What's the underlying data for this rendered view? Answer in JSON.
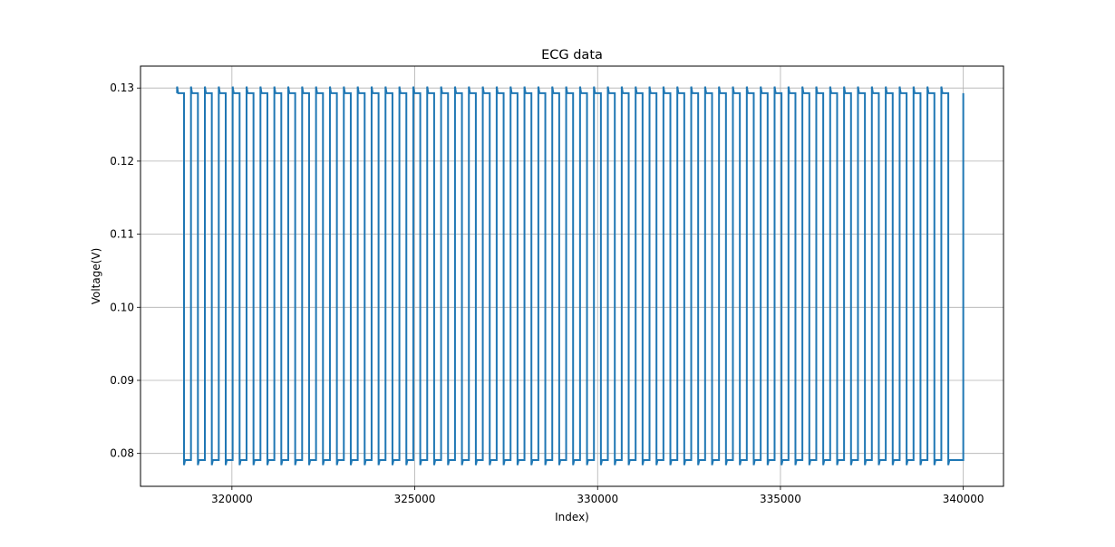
{
  "chart_data": {
    "type": "line",
    "title": "ECG data",
    "xlabel": "Index)",
    "ylabel": "Voltage(V)",
    "xlim": [
      317500,
      341100
    ],
    "ylim": [
      0.0755,
      0.133
    ],
    "xticks": [
      320000,
      325000,
      330000,
      335000,
      340000
    ],
    "yticks": [
      0.08,
      0.09,
      0.1,
      0.11,
      0.12,
      0.13
    ],
    "xtick_labels": [
      "320000",
      "325000",
      "330000",
      "335000",
      "340000"
    ],
    "ytick_labels": [
      "0.08",
      "0.09",
      "0.10",
      "0.11",
      "0.12",
      "0.13"
    ],
    "grid": true,
    "legend": "none",
    "series": [
      {
        "color": "#1f77b4",
        "x_start": 318500,
        "x_end": 340000,
        "high_level": 0.1293,
        "low_level": 0.0791,
        "cycle_starts": [
          318500,
          318880,
          319260,
          319640,
          320020,
          320400,
          320780,
          321160,
          321540,
          321920,
          322300,
          322680,
          323060,
          323440,
          323820,
          324200,
          324580,
          324960,
          325340,
          325720,
          326100,
          326480,
          326860,
          327240,
          327620,
          328000,
          328380,
          328760,
          329140,
          329520,
          329900,
          330280,
          330660,
          331040,
          331420,
          331800,
          332180,
          332560,
          332940,
          333320,
          333700,
          334080,
          334460,
          334840,
          335220,
          335600,
          335980,
          336360,
          336740,
          337120,
          337500,
          337880,
          338260,
          338640,
          339020,
          339400
        ],
        "high_duration": 190
      }
    ]
  }
}
